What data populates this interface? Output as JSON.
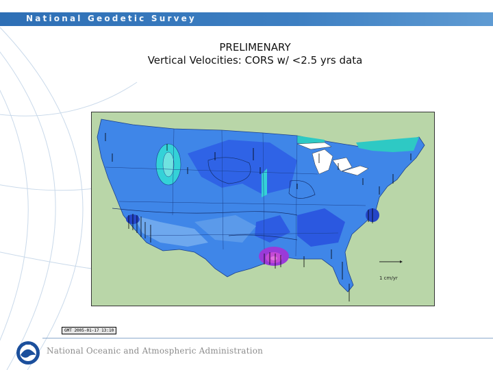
{
  "header": {
    "agency": "National Geodetic Survey"
  },
  "title": {
    "line1": "PRELIMENARY",
    "line2": "Vertical Velocities:  CORS w/ <2.5 yrs data"
  },
  "map": {
    "legend_vector_label": "1 cm/yr",
    "gmt_stamp": "GMT 2005-01-17 13:10",
    "colors": {
      "land_outside": "#b9d6a8",
      "blue_base": "#3f86e8",
      "blue_dark": "#2b58e0",
      "blue_light": "#6ea8ee",
      "cyan": "#34d2d8",
      "magenta": "#c44ad6"
    }
  },
  "footer": {
    "agency": "National Oceanic and Atmospheric Administration"
  }
}
